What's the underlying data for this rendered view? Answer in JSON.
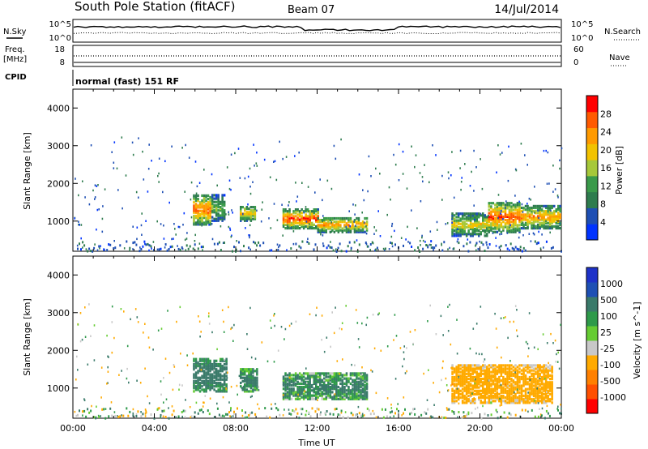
{
  "header": {
    "station": "South Pole Station (fitACF)",
    "beam": "Beam 07",
    "date": "14/Jul/2014"
  },
  "panels": {
    "nsky": {
      "label": "N.Sky",
      "ticks": [
        "10^5",
        "10^0"
      ],
      "right_ticks": [
        "10^5",
        "10^0"
      ],
      "right_label": "N.Search"
    },
    "freq": {
      "label_line1": "Freq.",
      "label_line2": "[MHz]",
      "ticks": [
        "18",
        "8"
      ],
      "right_ticks": [
        "60",
        "0"
      ],
      "right_label": "Nave"
    },
    "cpid": {
      "label": "CPID",
      "text": "normal (fast) 151 RF"
    }
  },
  "colors": {
    "power": [
      "#0033ff",
      "#1e4fb4",
      "#2e7c4e",
      "#3a9a4a",
      "#a6c83a",
      "#f2c200",
      "#ff9a00",
      "#ff5a00",
      "#ff0000"
    ],
    "velocity": [
      "#ff0000",
      "#ff5000",
      "#ff8000",
      "#ffaa00",
      "#c8c8c8",
      "#66cc33",
      "#2e9a4a",
      "#3a7a6a",
      "#1e50b4",
      "#1e32c8"
    ]
  },
  "chart_data": [
    {
      "type": "heatmap",
      "name": "power",
      "ylabel": "Slant Range [km]",
      "ylim": [
        200,
        4500
      ],
      "yticks": [
        "1000",
        "2000",
        "3000",
        "4000"
      ],
      "colorbar_label": "Power [dB]",
      "colorbar_ticks": [
        "4",
        "8",
        "12",
        "16",
        "20",
        "24",
        "28"
      ],
      "clim": [
        0,
        32
      ],
      "regions": [
        {
          "t0": 5.9,
          "t1": 6.7,
          "r0": 900,
          "r1": 1700,
          "value": 24
        },
        {
          "t0": 6.8,
          "t1": 7.4,
          "r0": 1000,
          "r1": 1700,
          "value": 14
        },
        {
          "t0": 8.2,
          "t1": 8.9,
          "r0": 1000,
          "r1": 1400,
          "value": 20
        },
        {
          "t0": 10.3,
          "t1": 12.0,
          "r0": 800,
          "r1": 1300,
          "value": 26
        },
        {
          "t0": 12.0,
          "t1": 14.4,
          "r0": 700,
          "r1": 1100,
          "value": 22
        },
        {
          "t0": 18.6,
          "t1": 20.4,
          "r0": 600,
          "r1": 1200,
          "value": 18
        },
        {
          "t0": 20.4,
          "t1": 22.0,
          "r0": 700,
          "r1": 1500,
          "value": 25
        },
        {
          "t0": 22.0,
          "t1": 24.0,
          "r0": 800,
          "r1": 1400,
          "value": 22
        }
      ]
    },
    {
      "type": "heatmap",
      "name": "velocity",
      "xlabel": "Time UT",
      "ylabel": "Slant Range [km]",
      "ylim": [
        200,
        4500
      ],
      "xticks": [
        "00:00",
        "04:00",
        "08:00",
        "12:00",
        "16:00",
        "20:00",
        "00:00"
      ],
      "yticks": [
        "1000",
        "2000",
        "3000",
        "4000"
      ],
      "colorbar_label": "Velocity [m s^-1]",
      "colorbar_ticks": [
        "1000",
        "500",
        "100",
        "25",
        "-25",
        "-100",
        "-500",
        "-1000"
      ],
      "regions": [
        {
          "t0": 5.9,
          "t1": 7.5,
          "r0": 900,
          "r1": 1800,
          "value": 200
        },
        {
          "t0": 8.2,
          "t1": 9.0,
          "r0": 900,
          "r1": 1500,
          "value": 150
        },
        {
          "t0": 10.3,
          "t1": 14.4,
          "r0": 700,
          "r1": 1400,
          "value": 120
        },
        {
          "t0": 18.6,
          "t1": 23.6,
          "r0": 600,
          "r1": 1600,
          "value": -300
        }
      ]
    }
  ]
}
